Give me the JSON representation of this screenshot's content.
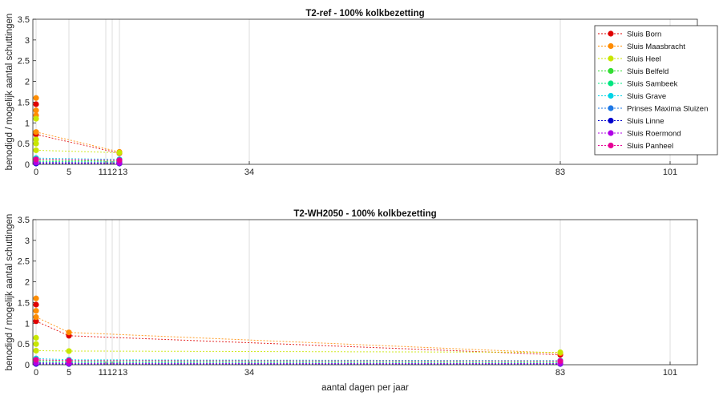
{
  "chart_data": [
    {
      "type": "line",
      "title": "T2-ref - 100% kolkbezetting",
      "xlabel": "",
      "ylabel": "benodigd / mogelijk aantal schuttingen",
      "ylim": [
        0,
        3.5
      ],
      "yticks": [
        "0",
        "0.5",
        "1",
        "1.5",
        "2",
        "2.5",
        "3",
        "3.5"
      ],
      "xticks": [
        "0",
        "5",
        "11",
        "12",
        "13",
        "34",
        "83",
        "101"
      ],
      "grid": true,
      "legend_position": "top-right",
      "series": [
        {
          "name": "Sluis Born",
          "color": "#e00000",
          "x": [
            0,
            13
          ],
          "y": [
            0.72,
            0.27
          ]
        },
        {
          "name": "Sluis Maasbracht",
          "color": "#ff8c00",
          "x": [
            0,
            13
          ],
          "y": [
            0.78,
            0.3
          ]
        },
        {
          "name": "Sluis Heel",
          "color": "#c8e600",
          "x": [
            0,
            13
          ],
          "y": [
            0.34,
            0.28
          ]
        },
        {
          "name": "Sluis Belfeld",
          "color": "#33dd33",
          "x": [
            0,
            13
          ],
          "y": [
            0.1,
            0.08
          ]
        },
        {
          "name": "Sluis Sambeek",
          "color": "#00e680",
          "x": [
            0,
            13
          ],
          "y": [
            0.07,
            0.06
          ]
        },
        {
          "name": "Sluis Grave",
          "color": "#00d4e6",
          "x": [
            0,
            13
          ],
          "y": [
            0.15,
            0.12
          ]
        },
        {
          "name": "Prinses Maxima Sluizen",
          "color": "#1e78e6",
          "x": [
            0,
            13
          ],
          "y": [
            0.05,
            0.04
          ]
        },
        {
          "name": "Sluis Linne",
          "color": "#0000cc",
          "x": [
            0,
            13
          ],
          "y": [
            0.02,
            0.02
          ]
        },
        {
          "name": "Sluis Roermond",
          "color": "#b000e6",
          "x": [
            0,
            13
          ],
          "y": [
            0.04,
            0.03
          ]
        },
        {
          "name": "Sluis Panheel",
          "color": "#e60096",
          "x": [
            0,
            13
          ],
          "y": [
            0.12,
            0.1
          ]
        }
      ],
      "extra_points_at_x0": [
        {
          "color": "#ff8c00",
          "y": 1.6
        },
        {
          "color": "#e00000",
          "y": 1.45
        },
        {
          "color": "#ff8c00",
          "y": 1.3
        },
        {
          "color": "#ff8c00",
          "y": 1.18
        },
        {
          "color": "#c8e600",
          "y": 1.1
        },
        {
          "color": "#c8e600",
          "y": 0.6
        },
        {
          "color": "#c8e600",
          "y": 0.5
        }
      ]
    },
    {
      "type": "line",
      "title": "T2-WH2050 - 100% kolkbezetting",
      "xlabel": "aantal dagen per jaar",
      "ylabel": "benodigd / mogelijk aantal schuttingen",
      "ylim": [
        0,
        3.5
      ],
      "yticks": [
        "0",
        "0.5",
        "1",
        "1.5",
        "2",
        "2.5",
        "3",
        "3.5"
      ],
      "xticks": [
        "0",
        "5",
        "11",
        "12",
        "13",
        "34",
        "83",
        "101"
      ],
      "grid": true,
      "series": [
        {
          "name": "Sluis Born",
          "color": "#e00000",
          "x": [
            0,
            5,
            83
          ],
          "y": [
            1.05,
            0.7,
            0.24
          ]
        },
        {
          "name": "Sluis Maasbracht",
          "color": "#ff8c00",
          "x": [
            0,
            5,
            83
          ],
          "y": [
            1.15,
            0.78,
            0.28
          ]
        },
        {
          "name": "Sluis Heel",
          "color": "#c8e600",
          "x": [
            0,
            5,
            83
          ],
          "y": [
            0.34,
            0.33,
            0.3
          ]
        },
        {
          "name": "Sluis Belfeld",
          "color": "#33dd33",
          "x": [
            0,
            5,
            83
          ],
          "y": [
            0.1,
            0.09,
            0.08
          ]
        },
        {
          "name": "Sluis Sambeek",
          "color": "#00e680",
          "x": [
            0,
            5,
            83
          ],
          "y": [
            0.07,
            0.06,
            0.05
          ]
        },
        {
          "name": "Sluis Grave",
          "color": "#00d4e6",
          "x": [
            0,
            5,
            83
          ],
          "y": [
            0.15,
            0.12,
            0.1
          ]
        },
        {
          "name": "Prinses Maxima Sluizen",
          "color": "#1e78e6",
          "x": [
            0,
            5,
            83
          ],
          "y": [
            0.05,
            0.04,
            0.03
          ]
        },
        {
          "name": "Sluis Linne",
          "color": "#0000cc",
          "x": [
            0,
            5,
            83
          ],
          "y": [
            0.02,
            0.02,
            0.02
          ]
        },
        {
          "name": "Sluis Roermond",
          "color": "#b000e6",
          "x": [
            0,
            5,
            83
          ],
          "y": [
            0.04,
            0.03,
            0.03
          ]
        },
        {
          "name": "Sluis Panheel",
          "color": "#e60096",
          "x": [
            0,
            5,
            83
          ],
          "y": [
            0.12,
            0.1,
            0.09
          ]
        }
      ],
      "extra_points_at_x0": [
        {
          "color": "#ff8c00",
          "y": 1.6
        },
        {
          "color": "#e00000",
          "y": 1.45
        },
        {
          "color": "#ff8c00",
          "y": 1.3
        },
        {
          "color": "#c8e600",
          "y": 0.65
        },
        {
          "color": "#c8e600",
          "y": 0.5
        }
      ]
    }
  ]
}
